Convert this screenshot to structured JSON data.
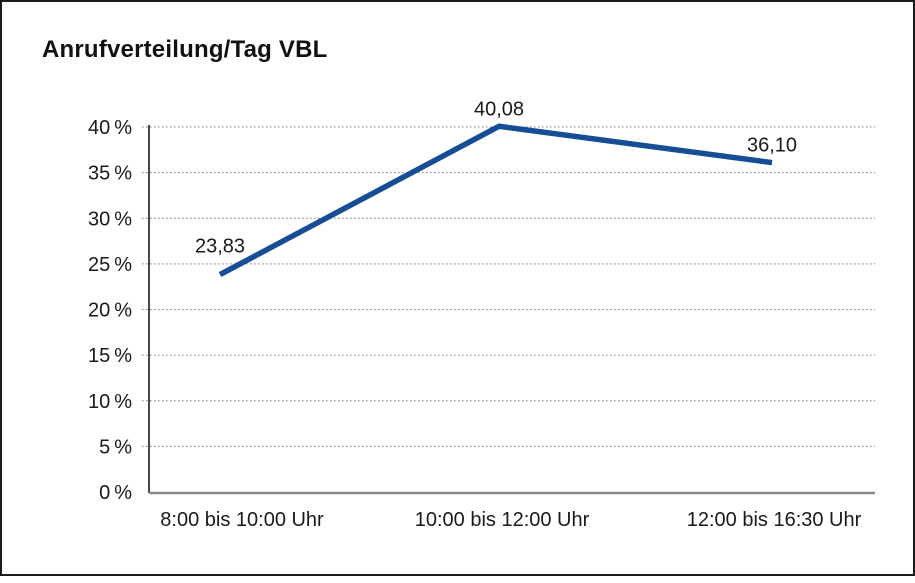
{
  "window": {
    "background": "#ffffff",
    "border_color": "#1a1a1a"
  },
  "chart_data": {
    "type": "line",
    "title": "Anrufverteilung/Tag VBL",
    "categories": [
      "8:00 bis 10:00 Uhr",
      "10:00 bis 12:00 Uhr",
      "12:00 bis 16:30 Uhr"
    ],
    "values": [
      23.83,
      40.08,
      36.1
    ],
    "value_labels": [
      "23,83",
      "40,08",
      "36,10"
    ],
    "yticks": [
      0,
      5,
      10,
      15,
      20,
      25,
      30,
      35,
      40
    ],
    "ytick_labels": [
      "0 %",
      "5 %",
      "10 %",
      "15 %",
      "20 %",
      "25 %",
      "30 %",
      "35 %",
      "40 %"
    ],
    "ylim": [
      0,
      40
    ],
    "xlabel": "",
    "ylabel": "",
    "grid": "horizontal-dotted",
    "legend": "none",
    "line_color": "#164d94",
    "text_color": "#1a1a1a",
    "yaxis_color": "#1a1a1a",
    "xaxis_color": "#8a8a8a",
    "grid_color": "#777777"
  }
}
